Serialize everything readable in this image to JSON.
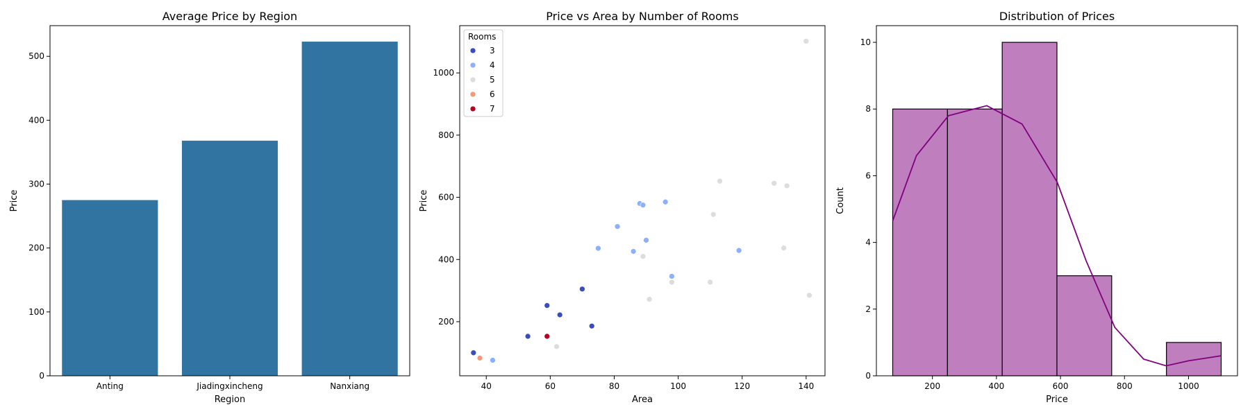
{
  "chart_data": [
    {
      "type": "bar",
      "title": "Average Price by Region",
      "xlabel": "Region",
      "ylabel": "Price",
      "categories": [
        "Anting",
        "Jiadingxincheng",
        "Nanxiang"
      ],
      "values": [
        275,
        368,
        523
      ],
      "ylim": [
        0,
        548
      ],
      "yticks": [
        0,
        100,
        200,
        300,
        400,
        500
      ],
      "color": "#3274a1"
    },
    {
      "type": "scatter",
      "title": "Price vs Area by Number of Rooms",
      "xlabel": "Area",
      "ylabel": "Price",
      "xlim": [
        31.7,
        145.9
      ],
      "ylim": [
        26,
        1152
      ],
      "xticks": [
        40,
        60,
        80,
        100,
        120,
        140
      ],
      "yticks": [
        200,
        400,
        600,
        800,
        1000
      ],
      "legend": {
        "title": "Rooms",
        "position": "upper-left"
      },
      "series": [
        {
          "name": "3",
          "color": "#3b4cc0",
          "points": [
            [
              36,
              100
            ],
            [
              53,
              153
            ],
            [
              59,
              252
            ],
            [
              63,
              222
            ],
            [
              70,
              305
            ],
            [
              73,
              186
            ]
          ]
        },
        {
          "name": "4",
          "color": "#8db0fe",
          "points": [
            [
              42,
              76
            ],
            [
              75,
              436
            ],
            [
              81,
              506
            ],
            [
              86,
              426
            ],
            [
              88,
              580
            ],
            [
              89,
              575
            ],
            [
              90,
              462
            ],
            [
              96,
              585
            ],
            [
              98,
              346
            ],
            [
              119,
              429
            ]
          ]
        },
        {
          "name": "5",
          "color": "#dddddd",
          "points": [
            [
              62,
              120
            ],
            [
              89,
              410
            ],
            [
              91,
              272
            ],
            [
              98,
              327
            ],
            [
              110,
              327
            ],
            [
              111,
              545
            ],
            [
              113,
              652
            ],
            [
              130,
              645
            ],
            [
              133,
              437
            ],
            [
              134,
              637
            ],
            [
              140,
              1102
            ],
            [
              141,
              285
            ]
          ]
        },
        {
          "name": "6",
          "color": "#f49a7b",
          "points": [
            [
              38,
              83
            ]
          ]
        },
        {
          "name": "7",
          "color": "#b40426",
          "points": [
            [
              59,
              153
            ]
          ]
        }
      ]
    },
    {
      "type": "bar",
      "subtype": "histogram",
      "title": "Distribution of Prices",
      "xlabel": "Price",
      "ylabel": "Count",
      "bins": [
        [
          76,
          247
        ],
        [
          247,
          418
        ],
        [
          418,
          589
        ],
        [
          589,
          760
        ],
        [
          760,
          931
        ],
        [
          931,
          1102
        ]
      ],
      "counts": [
        8,
        8,
        10,
        3,
        0,
        1
      ],
      "xlim": [
        25,
        1153
      ],
      "ylim": [
        0,
        10.5
      ],
      "xticks": [
        200,
        400,
        600,
        800,
        1000
      ],
      "yticks": [
        0,
        2,
        4,
        6,
        8,
        10
      ],
      "kde": [
        [
          76,
          4.65
        ],
        [
          150,
          6.6
        ],
        [
          250,
          7.8
        ],
        [
          370,
          8.1
        ],
        [
          480,
          7.55
        ],
        [
          590,
          5.8
        ],
        [
          680,
          3.45
        ],
        [
          770,
          1.45
        ],
        [
          860,
          0.5
        ],
        [
          930,
          0.3
        ],
        [
          1000,
          0.45
        ],
        [
          1102,
          0.6
        ]
      ],
      "fill_color": "#bf7fbf",
      "line_color": "#800080"
    }
  ]
}
